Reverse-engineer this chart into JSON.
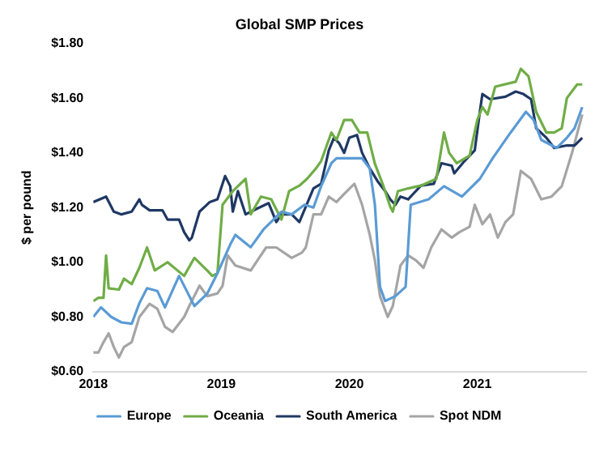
{
  "chart_data": {
    "type": "line",
    "title": "Global SMP Prices",
    "ylabel": "$ per pound",
    "xlim": [
      2018,
      2021.85
    ],
    "xticks": [
      2018,
      2019,
      2020,
      2021
    ],
    "ylim": [
      0.6,
      1.8
    ],
    "yticks": [
      {
        "value": 0.6,
        "label": "$0.60"
      },
      {
        "value": 0.8,
        "label": "$0.80"
      },
      {
        "value": 1.0,
        "label": "$1.00"
      },
      {
        "value": 1.2,
        "label": "$1.20"
      },
      {
        "value": 1.4,
        "label": "$1.40"
      },
      {
        "value": 1.6,
        "label": "$1.60"
      },
      {
        "value": 1.8,
        "label": "$1.80"
      }
    ],
    "grid": false,
    "legend": "bottom",
    "marker": "none",
    "line_style": "solid",
    "series": [
      {
        "name": "Europe",
        "color": "#5b9bd5",
        "x": [
          2018.0,
          2018.06,
          2018.14,
          2018.22,
          2018.3,
          2018.36,
          2018.42,
          2018.5,
          2018.56,
          2018.67,
          2018.79,
          2018.89,
          2018.97,
          2019.07,
          2019.11,
          2019.23,
          2019.33,
          2019.47,
          2019.55,
          2019.65,
          2019.72,
          2019.78,
          2019.86,
          2019.9,
          2020.1,
          2020.16,
          2020.2,
          2020.24,
          2020.28,
          2020.36,
          2020.44,
          2020.48,
          2020.62,
          2020.74,
          2020.88,
          2021.02,
          2021.12,
          2021.26,
          2021.38,
          2021.44,
          2021.5,
          2021.62,
          2021.7,
          2021.76,
          2021.82
        ],
        "values": [
          0.8,
          0.835,
          0.8,
          0.78,
          0.775,
          0.85,
          0.905,
          0.895,
          0.835,
          0.95,
          0.84,
          0.885,
          0.96,
          1.065,
          1.1,
          1.055,
          1.12,
          1.185,
          1.175,
          1.21,
          1.2,
          1.278,
          1.362,
          1.38,
          1.38,
          1.343,
          1.21,
          0.91,
          0.858,
          0.876,
          0.91,
          1.21,
          1.23,
          1.278,
          1.24,
          1.305,
          1.38,
          1.474,
          1.55,
          1.52,
          1.447,
          1.418,
          1.455,
          1.49,
          1.567
        ]
      },
      {
        "name": "Oceania",
        "color": "#70ad47",
        "x": [
          2018.0,
          2018.04,
          2018.08,
          2018.1,
          2018.12,
          2018.2,
          2018.24,
          2018.3,
          2018.36,
          2018.42,
          2018.48,
          2018.58,
          2018.71,
          2018.79,
          2018.89,
          2018.93,
          2018.97,
          2019.01,
          2019.09,
          2019.19,
          2019.23,
          2019.31,
          2019.39,
          2019.47,
          2019.53,
          2019.61,
          2019.67,
          2019.74,
          2019.78,
          2019.86,
          2019.9,
          2019.96,
          2020.02,
          2020.08,
          2020.14,
          2020.2,
          2020.26,
          2020.32,
          2020.34,
          2020.38,
          2020.46,
          2020.56,
          2020.68,
          2020.74,
          2020.78,
          2020.84,
          2020.94,
          2021.0,
          2021.04,
          2021.08,
          2021.14,
          2021.3,
          2021.34,
          2021.4,
          2021.46,
          2021.54,
          2021.6,
          2021.66,
          2021.7,
          2021.78,
          2021.82
        ],
        "values": [
          0.858,
          0.87,
          0.87,
          1.025,
          0.905,
          0.9,
          0.94,
          0.92,
          0.98,
          1.054,
          0.97,
          1.0,
          0.95,
          1.016,
          0.97,
          0.95,
          0.96,
          1.21,
          1.26,
          1.305,
          1.175,
          1.24,
          1.23,
          1.156,
          1.26,
          1.28,
          1.305,
          1.343,
          1.37,
          1.474,
          1.447,
          1.52,
          1.52,
          1.474,
          1.474,
          1.36,
          1.287,
          1.203,
          1.185,
          1.26,
          1.27,
          1.28,
          1.305,
          1.474,
          1.4,
          1.362,
          1.39,
          1.52,
          1.567,
          1.54,
          1.642,
          1.66,
          1.707,
          1.68,
          1.55,
          1.474,
          1.474,
          1.49,
          1.6,
          1.65,
          1.65
        ]
      },
      {
        "name": "South America",
        "color": "#1f3864",
        "x": [
          2018.0,
          2018.1,
          2018.16,
          2018.22,
          2018.3,
          2018.36,
          2018.38,
          2018.44,
          2018.54,
          2018.58,
          2018.67,
          2018.71,
          2018.75,
          2018.77,
          2018.83,
          2018.91,
          2018.97,
          2019.03,
          2019.07,
          2019.09,
          2019.13,
          2019.19,
          2019.27,
          2019.37,
          2019.43,
          2019.47,
          2019.55,
          2019.61,
          2019.72,
          2019.78,
          2019.84,
          2019.88,
          2019.92,
          2019.96,
          2020.0,
          2020.06,
          2020.1,
          2020.16,
          2020.22,
          2020.28,
          2020.32,
          2020.36,
          2020.4,
          2020.46,
          2020.56,
          2020.66,
          2020.72,
          2020.8,
          2020.82,
          2020.9,
          2020.98,
          2021.02,
          2021.04,
          2021.1,
          2021.22,
          2021.3,
          2021.36,
          2021.42,
          2021.46,
          2021.54,
          2021.6,
          2021.7,
          2021.76,
          2021.82
        ],
        "values": [
          1.22,
          1.24,
          1.185,
          1.175,
          1.185,
          1.23,
          1.21,
          1.19,
          1.19,
          1.156,
          1.156,
          1.11,
          1.08,
          1.09,
          1.185,
          1.22,
          1.23,
          1.315,
          1.278,
          1.185,
          1.26,
          1.175,
          1.194,
          1.216,
          1.147,
          1.175,
          1.175,
          1.147,
          1.27,
          1.287,
          1.409,
          1.455,
          1.436,
          1.4,
          1.455,
          1.465,
          1.4,
          1.343,
          1.297,
          1.26,
          1.23,
          1.21,
          1.24,
          1.23,
          1.28,
          1.287,
          1.362,
          1.353,
          1.325,
          1.37,
          1.409,
          1.55,
          1.615,
          1.596,
          1.605,
          1.624,
          1.615,
          1.596,
          1.49,
          1.455,
          1.418,
          1.427,
          1.427,
          1.455
        ]
      },
      {
        "name": "Spot NDM",
        "color": "#a5a5a5",
        "x": [
          2018.0,
          2018.04,
          2018.08,
          2018.12,
          2018.16,
          2018.2,
          2018.24,
          2018.3,
          2018.36,
          2018.44,
          2018.5,
          2018.56,
          2018.62,
          2018.71,
          2018.75,
          2018.83,
          2018.89,
          2018.97,
          2019.01,
          2019.05,
          2019.11,
          2019.23,
          2019.35,
          2019.43,
          2019.55,
          2019.63,
          2019.66,
          2019.72,
          2019.78,
          2019.84,
          2019.9,
          2019.96,
          2020.04,
          2020.1,
          2020.16,
          2020.2,
          2020.24,
          2020.3,
          2020.34,
          2020.4,
          2020.46,
          2020.52,
          2020.58,
          2020.64,
          2020.72,
          2020.8,
          2020.86,
          2020.94,
          2020.98,
          2021.04,
          2021.1,
          2021.16,
          2021.22,
          2021.28,
          2021.34,
          2021.42,
          2021.5,
          2021.58,
          2021.66,
          2021.74,
          2021.82
        ],
        "values": [
          0.67,
          0.67,
          0.708,
          0.74,
          0.69,
          0.652,
          0.69,
          0.708,
          0.8,
          0.848,
          0.83,
          0.764,
          0.745,
          0.8,
          0.84,
          0.914,
          0.876,
          0.886,
          0.914,
          1.025,
          0.988,
          0.97,
          1.054,
          1.054,
          1.016,
          1.035,
          1.054,
          1.175,
          1.175,
          1.24,
          1.22,
          1.25,
          1.287,
          1.21,
          1.1,
          1.007,
          0.876,
          0.8,
          0.84,
          0.988,
          1.025,
          1.007,
          0.98,
          1.054,
          1.12,
          1.09,
          1.11,
          1.13,
          1.21,
          1.139,
          1.175,
          1.09,
          1.147,
          1.175,
          1.334,
          1.305,
          1.23,
          1.24,
          1.278,
          1.4,
          1.54
        ]
      }
    ]
  }
}
